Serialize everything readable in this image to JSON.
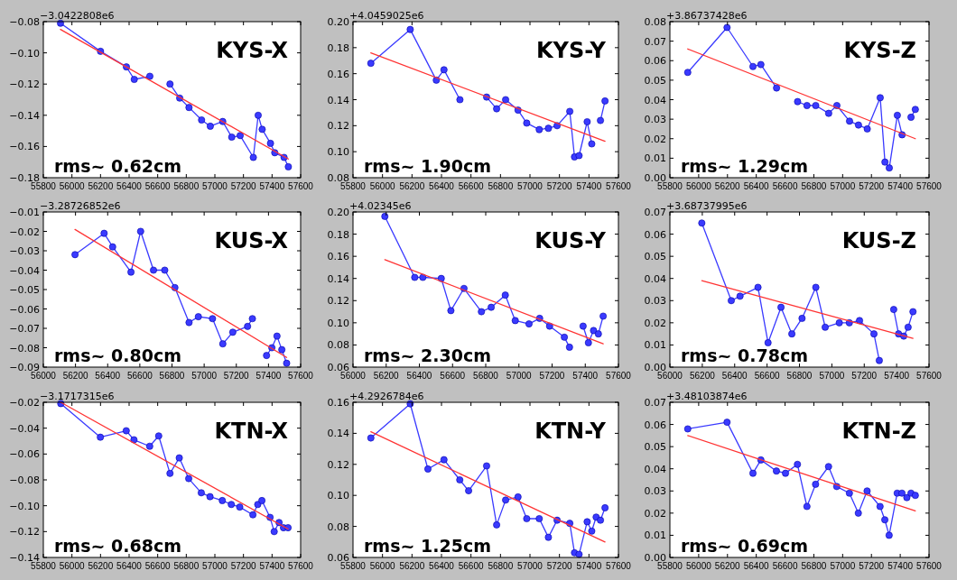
{
  "chart_data": [
    {
      "type": "line",
      "title": "KYS-X",
      "annotations": [
        "−3.0422808e6",
        "rms~ 0.62cm"
      ],
      "xlim": [
        55800,
        57600
      ],
      "xticks": [
        55800,
        56000,
        56200,
        56400,
        56600,
        56800,
        57000,
        57200,
        57400,
        57600
      ],
      "ylim": [
        -0.18,
        -0.08
      ],
      "yticks": [
        {
          "value": -0.18,
          "label": "−0.18"
        },
        {
          "value": -0.16,
          "label": "−0.16"
        },
        {
          "value": -0.14,
          "label": "−0.14"
        },
        {
          "value": -0.12,
          "label": "−0.12"
        },
        {
          "value": -0.1,
          "label": "−0.10"
        },
        {
          "value": -0.08,
          "label": "−0.08"
        }
      ],
      "grid": false,
      "series": [
        {
          "type": "line",
          "color": "#3a3aff",
          "marker": "circle",
          "x": [
            55920,
            56200,
            56381,
            56436,
            56545,
            56615,
            56686,
            56754,
            56819,
            56907,
            56968,
            57055,
            57118,
            57177,
            57269,
            57303,
            57331,
            57389,
            57419,
            57484,
            57514
          ],
          "values": [
            -0.081,
            -0.099,
            -0.109,
            -0.117,
            -0.115,
            null,
            -0.12,
            -0.129,
            -0.135,
            -0.143,
            -0.147,
            -0.144,
            -0.154,
            -0.153,
            -0.167,
            -0.14,
            -0.149,
            -0.158,
            -0.164,
            -0.167,
            -0.173
          ]
        },
        {
          "type": "line",
          "color": "#ff3333",
          "marker": "none",
          "x": [
            55920,
            57514
          ],
          "values": [
            -0.085,
            -0.168
          ]
        }
      ]
    },
    {
      "type": "line",
      "title": "KYS-Y",
      "annotations": [
        "+4.0459025e6",
        "rms~ 1.90cm"
      ],
      "xlim": [
        55800,
        57600
      ],
      "xticks": [
        55800,
        56000,
        56200,
        56400,
        56600,
        56800,
        57000,
        57200,
        57400,
        57600
      ],
      "ylim": [
        0.08,
        0.2
      ],
      "yticks": [
        0.08,
        {
          "value": 0.1,
          "label": "0.10"
        },
        0.12,
        0.14,
        0.16,
        0.18,
        {
          "value": 0.2,
          "label": "0.20"
        }
      ],
      "grid": false,
      "series": [
        {
          "type": "line",
          "color": "#3a3aff",
          "marker": "circle",
          "x": [
            55921,
            56188,
            56365,
            56417,
            56525,
            56615,
            56706,
            56774,
            56835,
            56919,
            56978,
            57063,
            57125,
            57184,
            57270,
            57302,
            57333,
            57388,
            57419,
            57450,
            57478,
            57509
          ],
          "values": [
            0.168,
            0.194,
            0.155,
            0.163,
            0.14,
            null,
            0.142,
            0.133,
            0.14,
            0.132,
            0.122,
            0.117,
            0.118,
            0.12,
            0.131,
            0.096,
            0.097,
            0.123,
            0.106,
            null,
            0.124,
            0.139
          ]
        },
        {
          "type": "line",
          "color": "#ff3333",
          "marker": "none",
          "x": [
            55921,
            57509
          ],
          "values": [
            0.176,
            0.108
          ]
        }
      ]
    },
    {
      "type": "line",
      "title": "KYS-Z",
      "annotations": [
        "+3.86737428e6",
        "rms~ 1.29cm"
      ],
      "xlim": [
        55800,
        57600
      ],
      "xticks": [
        55800,
        56000,
        56200,
        56400,
        56600,
        56800,
        57000,
        57200,
        57400,
        57600
      ],
      "ylim": [
        0,
        0.08
      ],
      "yticks": [
        {
          "value": 0,
          "label": "0.00"
        },
        0.01,
        0.02,
        0.03,
        0.04,
        0.05,
        0.06,
        0.07,
        0.08
      ],
      "grid": false,
      "series": [
        {
          "type": "line",
          "color": "#3a3aff",
          "marker": "circle",
          "x": [
            55924,
            56197,
            56377,
            56432,
            56541,
            56615,
            56687,
            56752,
            56813,
            56903,
            56960,
            57048,
            57110,
            57171,
            57261,
            57294,
            57324,
            57380,
            57413,
            57445,
            57475,
            57505
          ],
          "values": [
            0.054,
            0.077,
            0.057,
            0.058,
            0.046,
            null,
            0.039,
            0.037,
            0.037,
            0.033,
            0.037,
            0.029,
            0.027,
            0.025,
            0.041,
            0.008,
            0.005,
            0.032,
            0.022,
            null,
            0.031,
            0.035
          ]
        },
        {
          "type": "line",
          "color": "#ff3333",
          "marker": "none",
          "x": [
            55924,
            57505
          ],
          "values": [
            0.066,
            0.02
          ]
        }
      ]
    },
    {
      "type": "line",
      "title": "KUS-X",
      "annotations": [
        "−3.28726852e6",
        "rms~ 0.80cm"
      ],
      "xlim": [
        56000,
        57600
      ],
      "xticks": [
        56000,
        56200,
        56400,
        56600,
        56800,
        57000,
        57200,
        57400,
        57600
      ],
      "ylim": [
        -0.09,
        -0.01
      ],
      "yticks": [
        {
          "value": -0.09,
          "label": "−0.09"
        },
        {
          "value": -0.08,
          "label": "−0.08"
        },
        {
          "value": -0.07,
          "label": "−0.07"
        },
        {
          "value": -0.06,
          "label": "−0.06"
        },
        {
          "value": -0.05,
          "label": "−0.05"
        },
        {
          "value": -0.04,
          "label": "−0.04"
        },
        {
          "value": -0.03,
          "label": "−0.03"
        },
        {
          "value": -0.02,
          "label": "−0.02"
        },
        {
          "value": -0.01,
          "label": "−0.01"
        }
      ],
      "grid": false,
      "series": [
        {
          "type": "line",
          "color": "#3a3aff",
          "marker": "circle",
          "x": [
            56197,
            56378,
            56431,
            56545,
            56605,
            56685,
            56755,
            56818,
            56906,
            56964,
            57052,
            57116,
            57178,
            57270,
            57300,
            57345,
            57388,
            57421,
            57453,
            57483,
            57513
          ],
          "values": [
            -0.032,
            -0.021,
            -0.028,
            -0.041,
            -0.02,
            -0.04,
            -0.04,
            -0.049,
            -0.067,
            -0.064,
            -0.065,
            -0.078,
            -0.072,
            -0.069,
            -0.065,
            null,
            -0.084,
            -0.08,
            -0.074,
            -0.081,
            -0.088
          ]
        },
        {
          "type": "line",
          "color": "#ff3333",
          "marker": "none",
          "x": [
            56197,
            57513
          ],
          "values": [
            -0.019,
            -0.085
          ]
        }
      ]
    },
    {
      "type": "line",
      "title": "KUS-Y",
      "annotations": [
        "+4.02345e6",
        "rms~ 2.30cm"
      ],
      "xlim": [
        56000,
        57600
      ],
      "xticks": [
        56000,
        56200,
        56400,
        56600,
        56800,
        57000,
        57200,
        57400,
        57600
      ],
      "ylim": [
        0.06,
        0.2
      ],
      "yticks": [
        0.06,
        0.08,
        {
          "value": 0.1,
          "label": "0.10"
        },
        0.12,
        0.14,
        0.16,
        0.18,
        {
          "value": 0.2,
          "label": "0.20"
        }
      ],
      "grid": false,
      "series": [
        {
          "type": "line",
          "color": "#3a3aff",
          "marker": "circle",
          "x": [
            56192,
            56372,
            56421,
            56532,
            56590,
            56669,
            56774,
            56833,
            56918,
            56978,
            57061,
            57125,
            57185,
            57274,
            57305,
            57345,
            57387,
            57419,
            57450,
            57479,
            57508
          ],
          "values": [
            0.196,
            0.141,
            0.141,
            0.14,
            0.111,
            0.131,
            0.11,
            0.114,
            0.125,
            0.102,
            0.099,
            0.104,
            0.097,
            0.087,
            0.078,
            null,
            0.097,
            0.082,
            0.093,
            0.09,
            0.106
          ]
        },
        {
          "type": "line",
          "color": "#ff3333",
          "marker": "none",
          "x": [
            56192,
            57508
          ],
          "values": [
            0.157,
            0.081
          ]
        }
      ]
    },
    {
      "type": "line",
      "title": "KUS-Z",
      "annotations": [
        "+3.68737995e6",
        "rms~ 0.78cm"
      ],
      "xlim": [
        56000,
        57600
      ],
      "xticks": [
        56000,
        56200,
        56400,
        56600,
        56800,
        57000,
        57200,
        57400,
        57600
      ],
      "ylim": [
        0,
        0.07
      ],
      "yticks": [
        {
          "value": 0,
          "label": "0.00"
        },
        0.01,
        0.02,
        0.03,
        0.04,
        0.05,
        0.06,
        0.07
      ],
      "grid": false,
      "series": [
        {
          "type": "line",
          "color": "#3a3aff",
          "marker": "circle",
          "x": [
            56197,
            56379,
            56433,
            56544,
            56606,
            56686,
            56753,
            56816,
            56901,
            56959,
            57046,
            57108,
            57171,
            57260,
            57293,
            57340,
            57382,
            57412,
            57444,
            57471,
            57501
          ],
          "values": [
            0.065,
            0.03,
            0.032,
            0.036,
            0.011,
            0.027,
            0.015,
            0.022,
            0.036,
            0.018,
            0.02,
            0.02,
            0.021,
            0.015,
            0.003,
            null,
            0.026,
            0.015,
            0.014,
            0.018,
            0.025
          ]
        },
        {
          "type": "line",
          "color": "#ff3333",
          "marker": "none",
          "x": [
            56197,
            57501
          ],
          "values": [
            0.039,
            0.013
          ]
        }
      ]
    },
    {
      "type": "line",
      "title": "KTN-X",
      "annotations": [
        "−3.1717315e6",
        "rms~ 0.68cm"
      ],
      "xlim": [
        55800,
        57600
      ],
      "xticks": [
        55800,
        56000,
        56200,
        56400,
        56600,
        56800,
        57000,
        57200,
        57400,
        57600
      ],
      "ylim": [
        -0.14,
        -0.02
      ],
      "yticks": [
        {
          "value": -0.14,
          "label": "−0.14"
        },
        {
          "value": -0.12,
          "label": "−0.12"
        },
        {
          "value": -0.1,
          "label": "−0.10"
        },
        {
          "value": -0.08,
          "label": "−0.08"
        },
        {
          "value": -0.06,
          "label": "−0.06"
        },
        {
          "value": -0.04,
          "label": "−0.04"
        },
        {
          "value": -0.02,
          "label": "−0.02"
        }
      ],
      "grid": false,
      "series": [
        {
          "type": "line",
          "color": "#3a3aff",
          "marker": "circle",
          "x": [
            55922,
            56199,
            56380,
            56434,
            56544,
            56607,
            56686,
            56751,
            56817,
            56905,
            56966,
            57052,
            57115,
            57174,
            57266,
            57300,
            57329,
            57386,
            57415,
            57449,
            57480,
            57512
          ],
          "values": [
            -0.021,
            -0.047,
            -0.042,
            -0.049,
            -0.054,
            -0.046,
            -0.075,
            -0.063,
            -0.079,
            -0.09,
            -0.093,
            -0.096,
            -0.099,
            -0.101,
            -0.107,
            -0.099,
            -0.096,
            -0.109,
            -0.12,
            -0.113,
            -0.117,
            -0.117
          ]
        },
        {
          "type": "line",
          "color": "#ff3333",
          "marker": "none",
          "x": [
            55922,
            57512
          ],
          "values": [
            -0.02,
            -0.118
          ]
        }
      ]
    },
    {
      "type": "line",
      "title": "KTN-Y",
      "annotations": [
        "+4.2926784e6",
        "rms~ 1.25cm"
      ],
      "xlim": [
        55800,
        57600
      ],
      "xticks": [
        55800,
        56000,
        56200,
        56400,
        56600,
        56800,
        57000,
        57200,
        57400,
        57600
      ],
      "ylim": [
        0.06,
        0.16
      ],
      "yticks": [
        0.06,
        0.08,
        {
          "value": 0.1,
          "label": "0.10"
        },
        0.12,
        0.14,
        0.16
      ],
      "grid": false,
      "series": [
        {
          "type": "line",
          "color": "#3a3aff",
          "marker": "circle",
          "x": [
            55921,
            56188,
            56308,
            56417,
            56524,
            56584,
            56706,
            56774,
            56835,
            56919,
            56978,
            57063,
            57125,
            57184,
            57270,
            57302,
            57333,
            57388,
            57419,
            57449,
            57478,
            57509
          ],
          "values": [
            0.137,
            0.159,
            0.117,
            0.123,
            0.11,
            0.103,
            0.119,
            0.081,
            0.097,
            0.099,
            0.085,
            0.085,
            0.073,
            0.084,
            0.082,
            0.063,
            0.062,
            0.083,
            0.077,
            0.086,
            0.084,
            0.092
          ]
        },
        {
          "type": "line",
          "color": "#ff3333",
          "marker": "none",
          "x": [
            55921,
            57509
          ],
          "values": [
            0.141,
            0.07
          ]
        }
      ]
    },
    {
      "type": "line",
      "title": "KTN-Z",
      "annotations": [
        "+3.48103874e6",
        "rms~ 0.69cm"
      ],
      "xlim": [
        55800,
        57600
      ],
      "xticks": [
        55800,
        56000,
        56200,
        56400,
        56600,
        56800,
        57000,
        57200,
        57400,
        57600
      ],
      "ylim": [
        0,
        0.07
      ],
      "yticks": [
        {
          "value": 0,
          "label": "0.00"
        },
        0.01,
        0.02,
        0.03,
        0.04,
        0.05,
        0.06,
        0.07
      ],
      "grid": false,
      "series": [
        {
          "type": "line",
          "color": "#3a3aff",
          "marker": "circle",
          "x": [
            55924,
            56197,
            56377,
            56432,
            56540,
            56603,
            56686,
            56752,
            56812,
            56902,
            56959,
            57047,
            57109,
            57170,
            57260,
            57293,
            57323,
            57379,
            57412,
            57446,
            57475,
            57505
          ],
          "values": [
            0.058,
            0.061,
            0.038,
            0.044,
            0.039,
            0.038,
            0.042,
            0.023,
            0.033,
            0.041,
            0.032,
            0.029,
            0.02,
            0.03,
            0.023,
            0.017,
            0.01,
            0.029,
            0.029,
            0.027,
            0.029,
            0.028
          ]
        },
        {
          "type": "line",
          "color": "#ff3333",
          "marker": "none",
          "x": [
            55924,
            57505
          ],
          "values": [
            0.055,
            0.021
          ]
        }
      ]
    }
  ]
}
